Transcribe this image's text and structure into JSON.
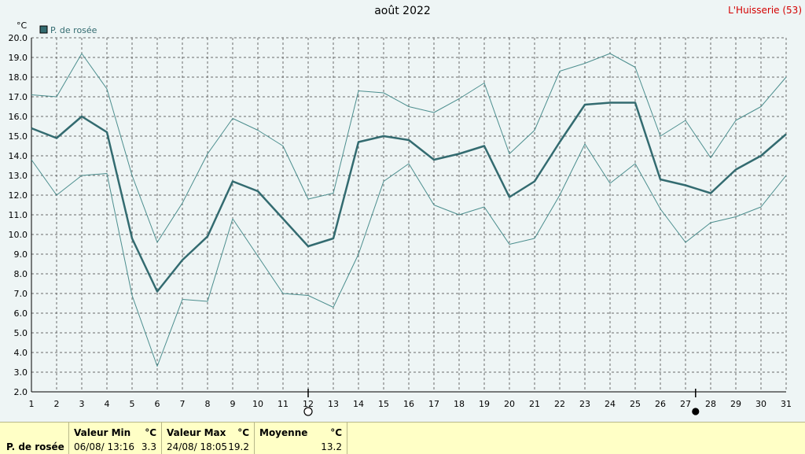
{
  "header": {
    "title": "août 2022",
    "station": "L'Huisserie (53)"
  },
  "chart_data": {
    "type": "line",
    "title": "août 2022",
    "ylabel": "°C",
    "xlabel": "",
    "ylim": [
      2.0,
      20.0
    ],
    "yticks": [
      "2.0",
      "3.0",
      "4.0",
      "5.0",
      "6.0",
      "7.0",
      "8.0",
      "9.0",
      "10.0",
      "11.0",
      "12.0",
      "13.0",
      "14.0",
      "15.0",
      "16.0",
      "17.0",
      "18.0",
      "19.0",
      "20.0"
    ],
    "x": [
      1,
      2,
      3,
      4,
      5,
      6,
      7,
      8,
      9,
      10,
      11,
      12,
      13,
      14,
      15,
      16,
      17,
      18,
      19,
      20,
      21,
      22,
      23,
      24,
      25,
      26,
      27,
      28,
      29,
      30,
      31
    ],
    "grid": true,
    "legend": "top-left",
    "series": [
      {
        "name": "P. de rosée",
        "role": "mean",
        "color": "#336b70",
        "values": [
          15.4,
          14.9,
          16.0,
          15.2,
          9.8,
          7.1,
          8.7,
          9.9,
          12.7,
          12.2,
          10.8,
          9.4,
          9.8,
          14.7,
          15.0,
          14.8,
          13.8,
          14.1,
          14.5,
          11.9,
          12.7,
          14.7,
          16.6,
          16.7,
          16.7,
          12.8,
          12.5,
          12.1,
          13.3,
          14.0,
          15.1
        ]
      },
      {
        "role": "max",
        "color": "#4c8e8e",
        "values": [
          17.1,
          17.0,
          19.2,
          17.4,
          13.0,
          9.6,
          11.6,
          14.1,
          15.9,
          15.3,
          14.5,
          11.8,
          12.1,
          17.3,
          17.2,
          16.5,
          16.2,
          16.9,
          17.7,
          14.1,
          15.3,
          18.3,
          18.7,
          19.2,
          18.5,
          15.0,
          15.8,
          13.9,
          15.8,
          16.5,
          18.0
        ]
      },
      {
        "role": "min",
        "color": "#4c8e8e",
        "values": [
          13.8,
          12.0,
          13.0,
          13.1,
          6.9,
          3.3,
          6.7,
          6.6,
          10.8,
          8.9,
          7.0,
          6.9,
          6.3,
          9.0,
          12.7,
          13.6,
          11.5,
          11.0,
          11.4,
          9.5,
          9.8,
          12.0,
          14.6,
          12.6,
          13.6,
          11.3,
          9.6,
          10.6,
          10.9,
          11.4,
          13.0
        ]
      }
    ],
    "moon_phases": [
      {
        "day": 12,
        "phase": "full",
        "icon": "full-moon-icon"
      },
      {
        "day": 27.4,
        "phase": "new",
        "icon": "new-moon-icon"
      }
    ]
  },
  "stats": {
    "row_label": "P. de rosée",
    "min_header": "Valeur Min",
    "min_unit": "°C",
    "min_datetime": "06/08/  13:16",
    "min_value": "3.3",
    "max_header": "Valeur Max",
    "max_unit": "°C",
    "max_datetime": "24/08/  18:05",
    "max_value": "19.2",
    "avg_header": "Moyenne",
    "avg_unit": "°C",
    "avg_value": "13.2"
  }
}
